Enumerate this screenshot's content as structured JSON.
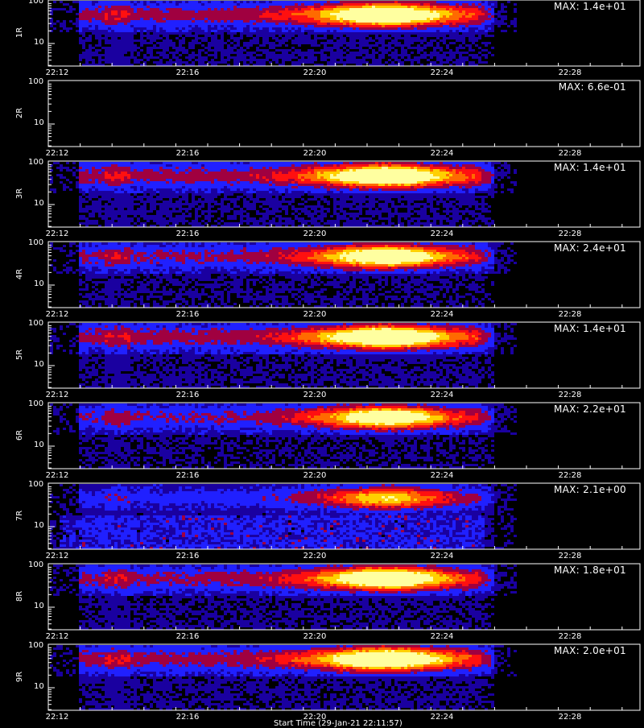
{
  "chart_data": {
    "type": "heatmap",
    "x_tick_labels": [
      "22:12",
      "22:16",
      "22:20",
      "22:24",
      "22:28"
    ],
    "x_range": [
      "22:12",
      "22:31"
    ],
    "y_scale": "log",
    "y_tick_labels": [
      "100",
      "10"
    ],
    "x_axis_title": "Start Time (29-Jan-21 22:11:57)",
    "panels": [
      {
        "label": "1R",
        "max_text": "MAX: 1.4e+01",
        "max_value": 14.0,
        "intensity": 1.0
      },
      {
        "label": "2R",
        "max_text": "MAX: 6.6e-01",
        "max_value": 0.66,
        "intensity": 0.0
      },
      {
        "label": "3R",
        "max_text": "MAX: 1.4e+01",
        "max_value": 14.0,
        "intensity": 1.0
      },
      {
        "label": "4R",
        "max_text": "MAX: 2.4e+01",
        "max_value": 24.0,
        "intensity": 0.9
      },
      {
        "label": "5R",
        "max_text": "MAX: 1.4e+01",
        "max_value": 14.0,
        "intensity": 1.0
      },
      {
        "label": "6R",
        "max_text": "MAX: 2.2e+01",
        "max_value": 22.0,
        "intensity": 0.85
      },
      {
        "label": "7R",
        "max_text": "MAX: 2.1e+00",
        "max_value": 2.1,
        "intensity": 0.75,
        "noisy": true
      },
      {
        "label": "8R",
        "max_text": "MAX: 1.8e+01",
        "max_value": 18.0,
        "intensity": 0.95
      },
      {
        "label": "9R",
        "max_text": "MAX: 2.0e+01",
        "max_value": 20.0,
        "intensity": 1.0
      }
    ],
    "colormap": [
      "#000000",
      "#1a00a0",
      "#2020ff",
      "#a00040",
      "#ff1010",
      "#ff6a00",
      "#ffd000",
      "#ffffa0"
    ],
    "grid": false,
    "legend": "none"
  }
}
